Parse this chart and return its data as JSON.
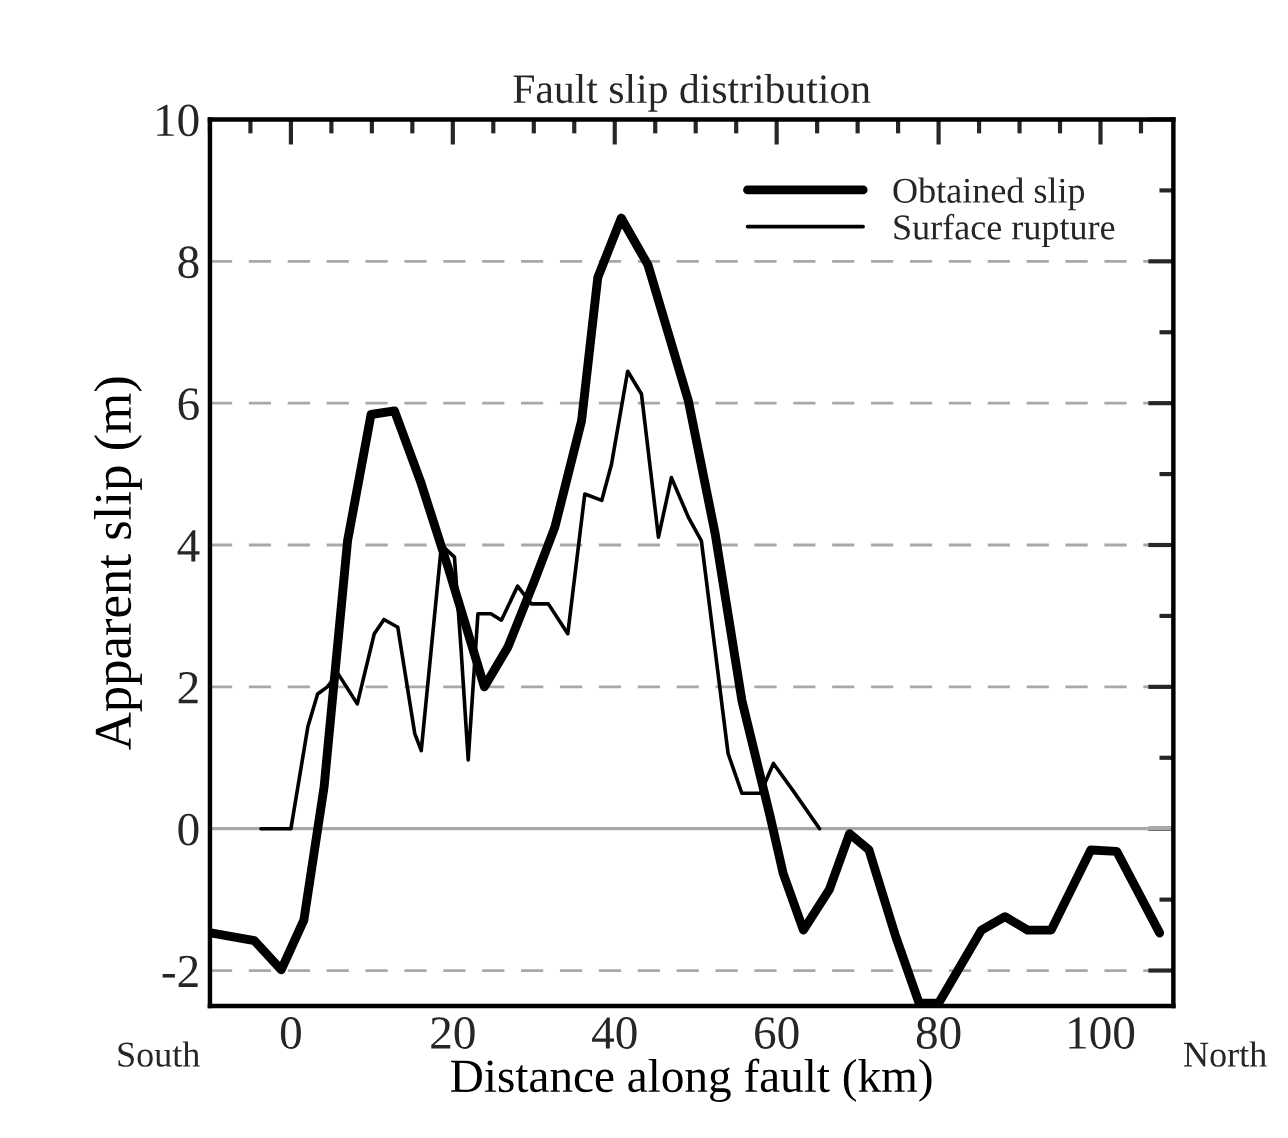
{
  "chart_data": {
    "type": "line",
    "title": "Fault slip distribution",
    "xlabel": "Distance along fault (km)",
    "ylabel": "Apparent slip (m)",
    "annotations": [
      "South",
      "North"
    ],
    "xlim": [
      -10,
      109
    ],
    "ylim": [
      -2.5,
      10
    ],
    "xticks": [
      0,
      20,
      40,
      60,
      80,
      100
    ],
    "yticks": [
      -2,
      0,
      2,
      4,
      6,
      8,
      10
    ],
    "grid": "y",
    "legend": "top right",
    "line_style": "solid",
    "marker": "none",
    "ref_lines": [
      {
        "axis": "y",
        "value": 0,
        "color": "#a8a8a8",
        "line_style": "solid"
      }
    ],
    "series": [
      {
        "name": "Obtained slip",
        "color": "#000000",
        "x": [
          -9.9,
          -4.5,
          -1.2,
          1.6,
          4.1,
          7.0,
          9.9,
          12.8,
          16.0,
          19.4,
          23.9,
          26.8,
          30.1,
          32.6,
          35.9,
          37.9,
          40.8,
          44.1,
          49.1,
          52.4,
          55.7,
          59.2,
          60.8,
          63.3,
          66.5,
          69.0,
          71.4,
          74.7,
          77.6,
          80.0,
          85.3,
          88.2,
          91.0,
          93.9,
          98.8,
          102.0,
          107.3
        ],
        "values": [
          -1.47,
          -1.58,
          -1.99,
          -1.29,
          0.59,
          4.06,
          5.84,
          5.89,
          4.9,
          3.69,
          2.0,
          2.56,
          3.5,
          4.25,
          5.75,
          7.77,
          8.61,
          7.95,
          6.03,
          4.16,
          1.81,
          0.17,
          -0.63,
          -1.43,
          -0.86,
          -0.07,
          -0.3,
          -1.52,
          -2.46,
          -2.46,
          -1.43,
          -1.24,
          -1.43,
          -1.43,
          -0.3,
          -0.32,
          -1.47
        ]
      },
      {
        "name": "Surface rupture",
        "color": "#000000",
        "x": [
          -3.7,
          0,
          2.1,
          3.3,
          4.5,
          5.8,
          8.2,
          10.3,
          11.5,
          13.2,
          15.3,
          16.1,
          18.6,
          20.2,
          21.0,
          21.9,
          23.1,
          24.7,
          26.0,
          28.0,
          29.7,
          31.8,
          34.2,
          36.3,
          38.4,
          39.6,
          41.6,
          43.3,
          45.4,
          47.0,
          49.1,
          50.7,
          54.0,
          55.7,
          58.0,
          59.6,
          62.0,
          65.3
        ],
        "values": [
          0,
          0,
          1.44,
          1.9,
          2.0,
          2.19,
          1.76,
          2.75,
          2.95,
          2.84,
          1.34,
          1.1,
          4.0,
          3.83,
          2.56,
          0.97,
          3.03,
          3.03,
          2.94,
          3.42,
          3.17,
          3.17,
          2.75,
          4.72,
          4.63,
          5.14,
          6.45,
          6.13,
          4.11,
          4.95,
          4.39,
          4.06,
          1.06,
          0.5,
          0.5,
          0.92,
          0.54,
          0
        ]
      }
    ]
  }
}
